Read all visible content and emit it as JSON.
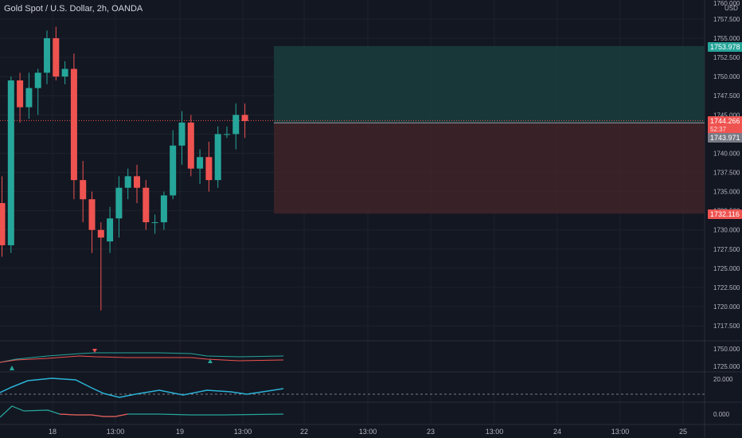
{
  "symbol_title": "Gold Spot / U.S. Dollar, 2h, OANDA",
  "currency": "USD",
  "colors": {
    "background": "#131722",
    "grid": "#1e222d",
    "text": "#b2b5be",
    "up": "#26a69a",
    "down": "#ef5350",
    "indicator_blue": "#2bb3d6",
    "entry_line": "#9598a1",
    "target_zone": "#1a3b3b",
    "stop_zone": "#3d2429"
  },
  "price_axis": {
    "ticks": [
      "1757.500",
      "1755.000",
      "1752.500",
      "1750.000",
      "1747.500",
      "1745.000",
      "1742.500",
      "1740.000",
      "1737.500",
      "1735.000",
      "1732.500",
      "1730.000",
      "1727.500",
      "1725.000",
      "1722.500",
      "1720.000",
      "1717.500"
    ]
  },
  "price_labels": {
    "target": "1753.978",
    "last": "1744.266",
    "countdown": "52:37",
    "entry": "1743.971",
    "stop": "1732.116"
  },
  "time_axis": {
    "labels": [
      "18",
      "13:00",
      "19",
      "13:00",
      "22",
      "13:00",
      "23",
      "13:00",
      "24",
      "13:00",
      "25"
    ]
  },
  "indicator_panes": [
    {
      "name": "ma-cross",
      "ticks": [
        "1750.000",
        "1725.000"
      ]
    },
    {
      "name": "oscillator-1",
      "ticks": [
        "20.000"
      ]
    },
    {
      "name": "oscillator-2",
      "ticks": [
        "0.000"
      ]
    }
  ],
  "chart_data": {
    "type": "candlestick",
    "y_unit": "USD",
    "candles": [
      {
        "o": 1733.5,
        "h": 1737.0,
        "l": 1726.5,
        "c": 1728.0
      },
      {
        "o": 1728.0,
        "h": 1750.0,
        "l": 1727.0,
        "c": 1749.5
      },
      {
        "o": 1749.5,
        "h": 1750.5,
        "l": 1744.0,
        "c": 1746.0
      },
      {
        "o": 1746.0,
        "h": 1750.5,
        "l": 1744.5,
        "c": 1748.5
      },
      {
        "o": 1748.5,
        "h": 1751.0,
        "l": 1745.0,
        "c": 1750.5
      },
      {
        "o": 1750.5,
        "h": 1756.0,
        "l": 1749.0,
        "c": 1755.0
      },
      {
        "o": 1755.0,
        "h": 1756.5,
        "l": 1749.5,
        "c": 1750.0
      },
      {
        "o": 1750.0,
        "h": 1752.0,
        "l": 1749.0,
        "c": 1751.0
      },
      {
        "o": 1751.0,
        "h": 1753.0,
        "l": 1734.0,
        "c": 1736.5
      },
      {
        "o": 1736.5,
        "h": 1739.0,
        "l": 1731.0,
        "c": 1734.0
      },
      {
        "o": 1734.0,
        "h": 1735.0,
        "l": 1727.0,
        "c": 1730.0
      },
      {
        "o": 1730.0,
        "h": 1731.0,
        "l": 1719.5,
        "c": 1729.0
      },
      {
        "o": 1728.5,
        "h": 1733.0,
        "l": 1727.0,
        "c": 1731.5
      },
      {
        "o": 1731.5,
        "h": 1737.0,
        "l": 1729.0,
        "c": 1735.5
      },
      {
        "o": 1735.5,
        "h": 1738.0,
        "l": 1734.0,
        "c": 1737.0
      },
      {
        "o": 1737.0,
        "h": 1738.5,
        "l": 1733.5,
        "c": 1735.5
      },
      {
        "o": 1735.5,
        "h": 1736.5,
        "l": 1730.0,
        "c": 1731.0
      },
      {
        "o": 1731.0,
        "h": 1732.0,
        "l": 1729.5,
        "c": 1731.0
      },
      {
        "o": 1731.0,
        "h": 1735.0,
        "l": 1730.0,
        "c": 1734.5
      },
      {
        "o": 1734.5,
        "h": 1743.0,
        "l": 1734.0,
        "c": 1741.0
      },
      {
        "o": 1741.0,
        "h": 1745.5,
        "l": 1738.5,
        "c": 1744.0
      },
      {
        "o": 1744.0,
        "h": 1745.0,
        "l": 1737.0,
        "c": 1738.0
      },
      {
        "o": 1738.0,
        "h": 1740.5,
        "l": 1736.0,
        "c": 1739.5
      },
      {
        "o": 1739.5,
        "h": 1741.5,
        "l": 1735.0,
        "c": 1736.5
      },
      {
        "o": 1736.5,
        "h": 1743.5,
        "l": 1735.5,
        "c": 1742.5
      },
      {
        "o": 1742.5,
        "h": 1743.5,
        "l": 1742.0,
        "c": 1742.5
      },
      {
        "o": 1742.5,
        "h": 1746.5,
        "l": 1740.5,
        "c": 1745.0
      },
      {
        "o": 1745.0,
        "h": 1746.5,
        "l": 1742.0,
        "c": 1744.2
      }
    ],
    "position": {
      "target": 1753.978,
      "entry": 1743.971,
      "stop": 1732.116
    }
  }
}
